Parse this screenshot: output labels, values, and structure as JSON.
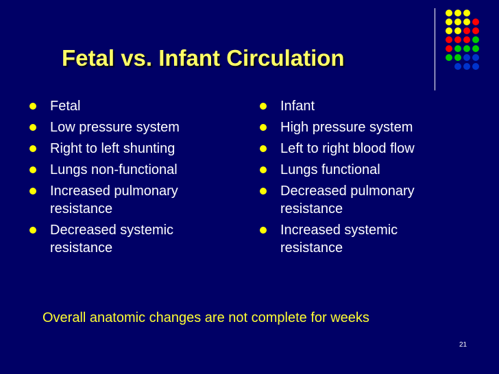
{
  "title": "Fetal vs. Infant Circulation",
  "left_items": [
    "Fetal",
    "Low pressure system",
    "Right to left shunting",
    "Lungs non-functional",
    "Increased pulmonary resistance",
    "Decreased systemic resistance"
  ],
  "right_items": [
    "Infant",
    "High pressure system",
    "Left to right blood flow",
    "Lungs functional",
    "Decreased pulmonary resistance",
    "Increased systemic resistance"
  ],
  "footer_note": "Overall anatomic changes are not complete for weeks",
  "page_number": "21",
  "colors": {
    "background": "#000066",
    "title": "#FFFF66",
    "text": "#FFFFFF",
    "bullet": "#FFFF00",
    "footer": "#FFFF33"
  },
  "decoration_dot_colors": [
    [
      "#FFFF00",
      "#FFFF00",
      "#FFFF00",
      null
    ],
    [
      "#FFFF00",
      "#FFFF00",
      "#FFFF00",
      "#FF0000"
    ],
    [
      "#FFFF00",
      "#FFFF00",
      "#FF0000",
      "#FF0000"
    ],
    [
      "#FF0000",
      "#FF0000",
      "#FF0000",
      "#00CC00"
    ],
    [
      "#FF0000",
      "#00CC00",
      "#00CC00",
      "#00CC00"
    ],
    [
      "#00CC00",
      "#00CC00",
      "#0033CC",
      "#0033CC"
    ],
    [
      null,
      "#0033CC",
      "#0033CC",
      "#0033CC"
    ]
  ]
}
